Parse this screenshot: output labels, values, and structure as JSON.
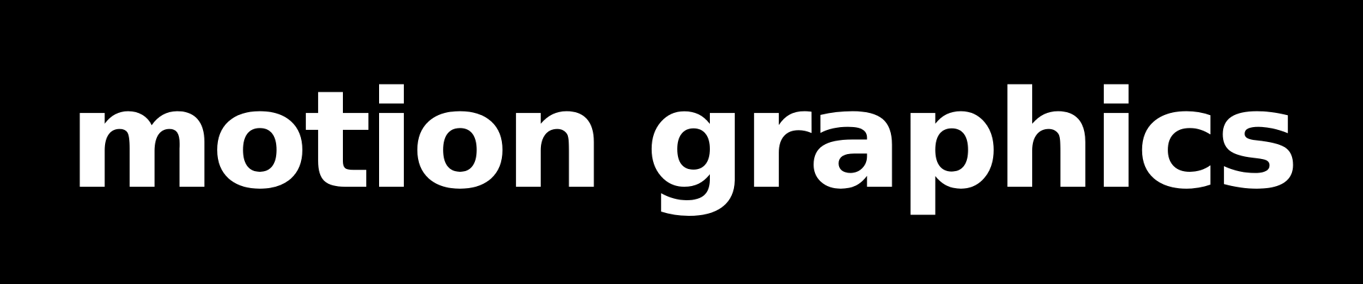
{
  "banner": {
    "text": "motion graphics",
    "text_color": "#ffffff",
    "background_color": "#000000"
  }
}
